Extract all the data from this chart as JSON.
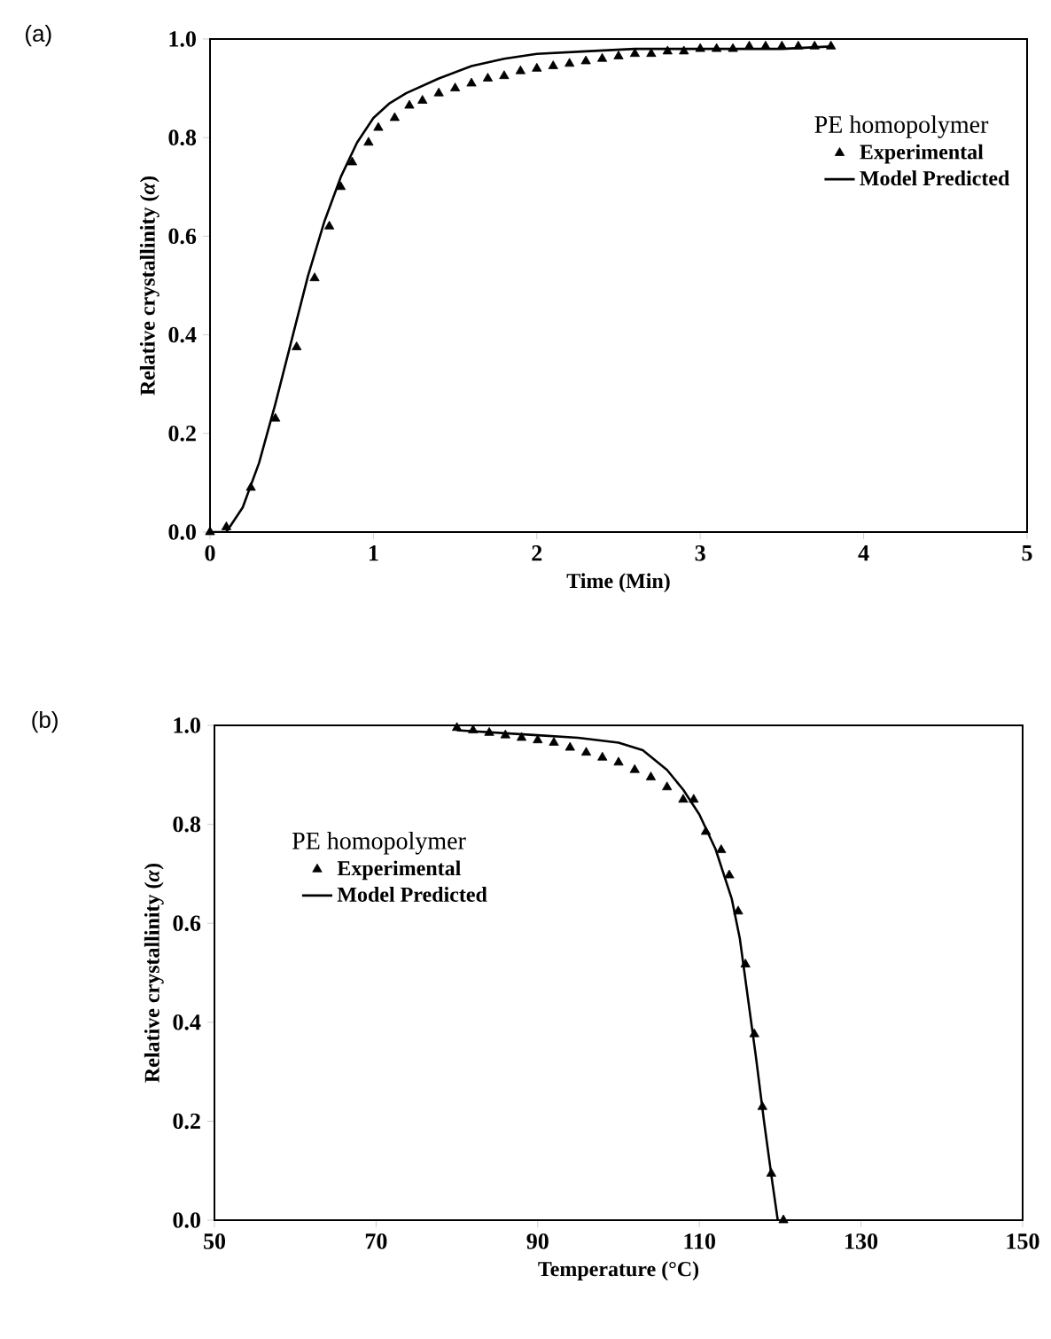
{
  "chart_data": [
    {
      "type": "scatter",
      "title": "(a)",
      "xlabel": "Time (Min)",
      "ylabel": "Relative crystallinity (*α*)",
      "legend_title": "PE homopolymer",
      "legend": "top right",
      "xlim": [
        0,
        5
      ],
      "ylim": [
        0,
        1
      ],
      "xticks": [
        0,
        1,
        2,
        3,
        4,
        5
      ],
      "yticks": [
        {
          "value": 0,
          "label": "0.0"
        },
        {
          "value": 0.2,
          "label": "0.2"
        },
        {
          "value": 0.4,
          "label": "0.4"
        },
        {
          "value": 0.6,
          "label": "0.6"
        },
        {
          "value": 0.8,
          "label": "0.8"
        },
        {
          "value": 1,
          "label": "1.0"
        }
      ],
      "series": [
        {
          "name": "Experimental",
          "type": "scatter",
          "marker": "triangle",
          "color": "#000000",
          "x": [
            0,
            0.1,
            0.25,
            0.4,
            0.53,
            0.64,
            0.73,
            0.8,
            0.87,
            0.97,
            1.03,
            1.13,
            1.22,
            1.3,
            1.4,
            1.5,
            1.6,
            1.7,
            1.8,
            1.9,
            2.0,
            2.1,
            2.2,
            2.3,
            2.4,
            2.5,
            2.6,
            2.7,
            2.8,
            2.9,
            3.0,
            3.1,
            3.2,
            3.3,
            3.4,
            3.5,
            3.6,
            3.7,
            3.8
          ],
          "values": [
            0,
            0.01,
            0.09,
            0.23,
            0.375,
            0.515,
            0.62,
            0.7,
            0.75,
            0.79,
            0.82,
            0.84,
            0.865,
            0.875,
            0.89,
            0.9,
            0.91,
            0.92,
            0.925,
            0.935,
            0.94,
            0.945,
            0.95,
            0.955,
            0.96,
            0.965,
            0.97,
            0.97,
            0.975,
            0.975,
            0.98,
            0.98,
            0.98,
            0.985,
            0.985,
            0.985,
            0.985,
            0.985,
            0.985
          ]
        },
        {
          "name": "Model Predicted",
          "type": "line",
          "marker": "none",
          "line_style": "solid",
          "color": "#000000",
          "x": [
            0,
            0.1,
            0.2,
            0.3,
            0.4,
            0.5,
            0.6,
            0.7,
            0.8,
            0.9,
            1.0,
            1.1,
            1.2,
            1.4,
            1.6,
            1.8,
            2.0,
            2.3,
            2.6,
            3.0,
            3.5,
            3.8
          ],
          "values": [
            0,
            0.0,
            0.05,
            0.14,
            0.26,
            0.39,
            0.52,
            0.63,
            0.72,
            0.79,
            0.84,
            0.87,
            0.89,
            0.92,
            0.945,
            0.96,
            0.97,
            0.975,
            0.98,
            0.98,
            0.98,
            0.985
          ]
        }
      ]
    },
    {
      "type": "scatter",
      "title": "(b)",
      "xlabel": "Temperature (°C)",
      "ylabel": "Relative crystallinity (*α*)",
      "legend_title": "PE homopolymer",
      "legend": "top left",
      "xlim": [
        50,
        150
      ],
      "ylim": [
        0,
        1
      ],
      "xticks": [
        50,
        70,
        90,
        110,
        130,
        150
      ],
      "yticks": [
        {
          "value": 0,
          "label": "0.0"
        },
        {
          "value": 0.2,
          "label": "0.2"
        },
        {
          "value": 0.4,
          "label": "0.4"
        },
        {
          "value": 0.6,
          "label": "0.6"
        },
        {
          "value": 0.8,
          "label": "0.8"
        },
        {
          "value": 1,
          "label": "1.0"
        }
      ],
      "series": [
        {
          "name": "Experimental",
          "type": "scatter",
          "marker": "triangle",
          "color": "#000000",
          "x": [
            80,
            82,
            84,
            86,
            88,
            90,
            92,
            94,
            96,
            98,
            100,
            102,
            104,
            106,
            108,
            109.3,
            110.8,
            112.7,
            113.7,
            114.8,
            115.7,
            116.8,
            117.8,
            118.9,
            120.4
          ],
          "values": [
            0.995,
            0.99,
            0.985,
            0.98,
            0.975,
            0.97,
            0.965,
            0.955,
            0.945,
            0.935,
            0.925,
            0.91,
            0.895,
            0.875,
            0.85,
            0.85,
            0.785,
            0.748,
            0.697,
            0.624,
            0.517,
            0.376,
            0.229,
            0.094,
            0
          ]
        },
        {
          "name": "Model Predicted",
          "type": "line",
          "marker": "none",
          "line_style": "solid",
          "color": "#000000",
          "x": [
            80,
            90,
            95,
            100,
            103,
            106,
            108,
            110,
            112,
            114,
            115,
            116,
            117,
            118,
            119,
            119.7
          ],
          "values": [
            0.99,
            0.98,
            0.975,
            0.965,
            0.95,
            0.91,
            0.87,
            0.82,
            0.75,
            0.65,
            0.57,
            0.45,
            0.33,
            0.2,
            0.08,
            0
          ]
        }
      ]
    }
  ]
}
